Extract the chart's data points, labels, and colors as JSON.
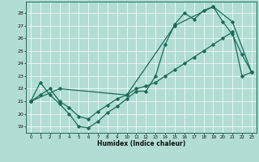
{
  "xlabel": "Humidex (Indice chaleur)",
  "bg_color": "#b2ddd4",
  "line_color": "#1a6b5a",
  "grid_color": "#ffffff",
  "xlim": [
    -0.5,
    23.5
  ],
  "ylim": [
    18.5,
    28.9
  ],
  "yticks": [
    19,
    20,
    21,
    22,
    23,
    24,
    25,
    26,
    27,
    28
  ],
  "xticks": [
    0,
    1,
    2,
    3,
    4,
    5,
    6,
    7,
    8,
    9,
    10,
    11,
    12,
    13,
    14,
    15,
    16,
    17,
    18,
    19,
    20,
    21,
    22,
    23
  ],
  "series1_x": [
    0,
    1,
    2,
    3,
    4,
    5,
    6,
    7,
    8,
    9,
    10,
    11,
    12,
    13,
    14,
    15,
    16,
    17,
    18,
    19,
    20,
    21,
    22,
    23
  ],
  "series1_y": [
    21.0,
    22.5,
    21.5,
    20.8,
    20.0,
    19.0,
    18.9,
    19.4,
    20.1,
    20.6,
    21.2,
    21.8,
    21.8,
    23.0,
    25.5,
    27.1,
    28.0,
    27.5,
    28.2,
    28.5,
    27.3,
    26.3,
    24.7,
    23.3
  ],
  "series2_x": [
    0,
    1,
    2,
    3,
    4,
    5,
    6,
    7,
    8,
    9,
    10,
    11,
    12,
    13,
    14,
    15,
    16,
    17,
    18,
    19,
    20,
    21,
    22,
    23
  ],
  "series2_y": [
    21.0,
    21.5,
    22.0,
    21.0,
    20.5,
    19.8,
    19.6,
    20.2,
    20.7,
    21.2,
    21.5,
    22.0,
    22.2,
    22.5,
    23.0,
    23.5,
    24.0,
    24.5,
    25.0,
    25.5,
    26.0,
    26.5,
    23.0,
    23.3
  ],
  "series3_x": [
    0,
    3,
    10,
    15,
    19,
    21,
    23
  ],
  "series3_y": [
    21.0,
    22.0,
    21.5,
    27.0,
    28.5,
    27.3,
    23.3
  ]
}
